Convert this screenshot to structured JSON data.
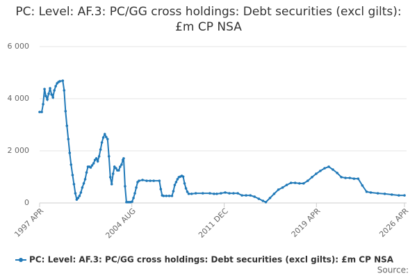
{
  "chart_data": {
    "type": "line",
    "title": "PC: Level: AF.3: PC/GG cross holdings: Debt securities (excl gilts): £m CP NSA",
    "source": "Source:",
    "x": [
      1997.25,
      1997.42,
      1997.53,
      1997.64,
      1997.75,
      1997.86,
      1997.97,
      1998.08,
      1998.2,
      1998.31,
      1998.42,
      1998.53,
      1998.64,
      1998.75,
      1998.86,
      1999.09,
      1999.2,
      1999.31,
      1999.42,
      1999.53,
      1999.64,
      1999.75,
      1999.87,
      1999.98,
      2000.09,
      2000.2,
      2000.31,
      2000.42,
      2000.53,
      2000.64,
      2000.76,
      2000.87,
      2000.98,
      2001.09,
      2001.2,
      2001.31,
      2001.42,
      2001.54,
      2001.65,
      2001.76,
      2001.87,
      2001.98,
      2002.09,
      2002.2,
      2002.31,
      2002.43,
      2002.54,
      2002.65,
      2002.76,
      2002.87,
      2002.98,
      2003.09,
      2003.2,
      2003.32,
      2003.43,
      2003.54,
      2003.65,
      2003.76,
      2003.87,
      2003.93,
      2004.04,
      2004.15,
      2004.26,
      2004.37,
      2004.48,
      2004.6,
      2004.71,
      2004.82,
      2004.93,
      2005.04,
      2005.15,
      2005.43,
      2005.76,
      2006.04,
      2006.32,
      2006.77,
      2006.88,
      2006.99,
      2007.1,
      2007.32,
      2007.55,
      2007.77,
      2007.88,
      2007.99,
      2008.1,
      2008.21,
      2008.32,
      2008.44,
      2008.55,
      2008.66,
      2008.77,
      2008.88,
      2008.99,
      2009.1,
      2009.33,
      2009.66,
      2010.22,
      2010.78,
      2011.11,
      2011.33,
      2011.66,
      2012.0,
      2012.33,
      2012.66,
      2013.0,
      2013.33,
      2013.66,
      2014.0,
      2014.33,
      2014.67,
      2015.0,
      2015.23,
      2015.56,
      2015.89,
      2016.23,
      2016.56,
      2016.89,
      2017.23,
      2017.56,
      2017.9,
      2018.23,
      2018.56,
      2018.9,
      2019.23,
      2019.56,
      2019.9,
      2020.23,
      2020.56,
      2020.9,
      2021.23,
      2021.56,
      2021.9,
      2022.24,
      2022.57,
      2022.9,
      2023.24,
      2023.57,
      2024.13,
      2024.68,
      2025.24,
      2025.8,
      2026.25
    ],
    "series": [
      {
        "name": "PC: Level: AF.3: PC/GG cross holdings: Debt securities (excl gilts): £m CP NSA",
        "color": "#2079b8",
        "values": [
          3490,
          3490,
          3790,
          4370,
          4100,
          3970,
          4190,
          4400,
          4160,
          4050,
          4320,
          4480,
          4590,
          4640,
          4670,
          4690,
          4320,
          3520,
          2960,
          2450,
          1920,
          1470,
          1070,
          720,
          370,
          130,
          190,
          270,
          400,
          590,
          750,
          910,
          1170,
          1390,
          1390,
          1360,
          1440,
          1520,
          1650,
          1710,
          1600,
          1790,
          2050,
          2320,
          2510,
          2640,
          2530,
          2450,
          1790,
          990,
          720,
          1120,
          1390,
          1330,
          1250,
          1250,
          1390,
          1470,
          1650,
          1710,
          640,
          30,
          30,
          30,
          30,
          50,
          190,
          370,
          590,
          800,
          850,
          880,
          850,
          850,
          850,
          850,
          530,
          290,
          270,
          270,
          270,
          270,
          450,
          690,
          800,
          910,
          990,
          1010,
          1040,
          1010,
          750,
          560,
          430,
          350,
          350,
          370,
          370,
          370,
          350,
          350,
          370,
          400,
          370,
          370,
          370,
          290,
          290,
          290,
          240,
          160,
          80,
          30,
          190,
          350,
          510,
          590,
          690,
          770,
          770,
          750,
          750,
          850,
          990,
          1120,
          1230,
          1330,
          1390,
          1280,
          1150,
          990,
          960,
          960,
          930,
          930,
          670,
          430,
          400,
          370,
          350,
          320,
          290,
          290
        ]
      }
    ],
    "xlim": [
      1997.25,
      2026.25
    ],
    "xticks": [
      {
        "value": 1997.25,
        "label": "1997 APR"
      },
      {
        "value": 2004.58,
        "label": "2004 AUG"
      },
      {
        "value": 2011.92,
        "label": "2011 DEC"
      },
      {
        "value": 2019.25,
        "label": "2019 APR"
      },
      {
        "value": 2026.25,
        "label": "2026 APR"
      }
    ],
    "ylim": [
      0,
      6000
    ],
    "yticks": [
      0,
      {
        "value": 2000,
        "label": "2 000"
      },
      {
        "value": 4000,
        "label": "4 000"
      },
      {
        "value": 6000,
        "label": "6 000"
      }
    ],
    "grid": true
  }
}
